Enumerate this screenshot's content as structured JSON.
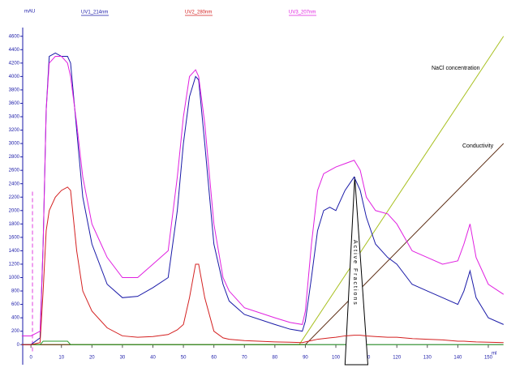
{
  "chart_data": {
    "type": "line",
    "y_label": "mAU",
    "x_label": "ml",
    "xlim": [
      -2.7,
      154.8
    ],
    "ylim": [
      -300,
      4730
    ],
    "xticks": [
      0,
      10,
      20,
      30,
      40,
      50,
      60,
      70,
      80,
      90,
      100,
      110,
      120,
      130,
      140,
      150
    ],
    "yticks": [
      0,
      200,
      400,
      600,
      800,
      1000,
      1200,
      1400,
      1600,
      1800,
      2000,
      2200,
      2400,
      2600,
      2800,
      3000,
      3200,
      3400,
      3600,
      3800,
      4000,
      4200,
      4400,
      4600
    ],
    "x": [
      -3,
      0,
      3,
      4,
      5,
      6,
      8,
      10,
      12,
      13,
      15,
      17,
      20,
      25,
      30,
      35,
      40,
      45,
      48,
      50,
      52,
      54,
      55,
      57,
      60,
      63,
      65,
      70,
      80,
      85,
      89,
      90,
      92,
      94,
      96,
      98,
      100,
      103,
      106,
      108,
      110,
      113,
      117,
      120,
      125,
      130,
      135,
      140,
      142,
      144,
      146,
      150,
      155
    ],
    "series": [
      {
        "name": "UV1_214nm",
        "color": "#1a1aa8",
        "values": [
          0,
          0,
          100,
          1500,
          3500,
          4300,
          4350,
          4300,
          4300,
          4200,
          3200,
          2200,
          1500,
          900,
          700,
          720,
          850,
          1000,
          2000,
          3000,
          3700,
          4000,
          3950,
          3000,
          1500,
          900,
          650,
          450,
          300,
          230,
          200,
          350,
          1000,
          1700,
          2000,
          2050,
          2000,
          2300,
          2500,
          2300,
          1900,
          1500,
          1300,
          1200,
          900,
          800,
          700,
          600,
          800,
          1100,
          700,
          400,
          300
        ]
      },
      {
        "name": "UV2_280nm",
        "color": "#d42020",
        "values": [
          0,
          0,
          30,
          800,
          1700,
          2000,
          2200,
          2300,
          2350,
          2300,
          1400,
          800,
          500,
          250,
          130,
          110,
          120,
          150,
          220,
          300,
          700,
          1200,
          1200,
          700,
          200,
          100,
          80,
          60,
          40,
          35,
          30,
          40,
          60,
          80,
          90,
          100,
          110,
          130,
          140,
          140,
          130,
          120,
          110,
          110,
          90,
          80,
          70,
          50,
          50,
          45,
          40,
          35,
          30
        ]
      },
      {
        "name": "UV3_207nm",
        "color": "#e020e0",
        "values": [
          130,
          130,
          200,
          1500,
          3500,
          4200,
          4300,
          4300,
          4200,
          4000,
          3300,
          2500,
          1800,
          1300,
          1000,
          1000,
          1200,
          1400,
          2500,
          3400,
          4000,
          4100,
          4000,
          3300,
          1800,
          1000,
          800,
          550,
          400,
          330,
          300,
          500,
          1500,
          2300,
          2550,
          2600,
          2650,
          2700,
          2750,
          2600,
          2200,
          2000,
          1950,
          1800,
          1400,
          1300,
          1200,
          1250,
          1500,
          1800,
          1300,
          900,
          750
        ]
      }
    ],
    "traces": [
      {
        "name": "NaCl concentration",
        "color": "#a8c020",
        "x": [
          -3,
          88,
          155
        ],
        "values": [
          0,
          0,
          4600
        ]
      },
      {
        "name": "Conductivity",
        "color": "#5a2a10",
        "x": [
          -3,
          90,
          155
        ],
        "values": [
          0,
          0,
          3000
        ]
      },
      {
        "color": "#2a9a2a",
        "x": [
          -3,
          3,
          4,
          12,
          13,
          155
        ],
        "values": [
          0,
          0,
          50,
          50,
          0,
          0
        ]
      },
      {
        "color": "#e040e0",
        "dash": true,
        "x": [
          0.5,
          0.5
        ],
        "values": [
          -100,
          2300
        ]
      }
    ],
    "fraction": {
      "label": "Active Fractions",
      "x": [
        103,
        106.2,
        110.5
      ],
      "values": [
        -300,
        2500,
        -300
      ]
    }
  }
}
